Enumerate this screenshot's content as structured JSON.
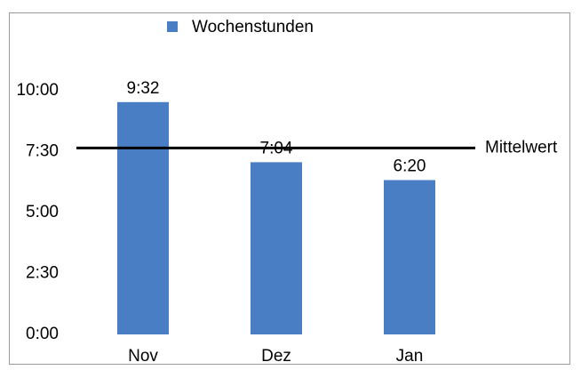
{
  "chart_data": {
    "type": "bar",
    "categories": [
      "Nov",
      "Dez",
      "Jan"
    ],
    "series": [
      {
        "name": "Wochenstunden",
        "color": "#4a7ec4",
        "values": [
          572,
          424,
          380
        ],
        "value_labels": [
          "9:32",
          "7:04",
          "6:20"
        ]
      }
    ],
    "ylim": [
      0,
      600
    ],
    "yticks": [
      {
        "value": 0,
        "label": "0:00"
      },
      {
        "value": 150,
        "label": "2:30"
      },
      {
        "value": 300,
        "label": "5:00"
      },
      {
        "value": 450,
        "label": "7:30"
      },
      {
        "value": 600,
        "label": "10:00"
      }
    ],
    "reference_line": {
      "value": 459,
      "label": "Mittelwert",
      "color": "#000000"
    },
    "legend": "top"
  }
}
